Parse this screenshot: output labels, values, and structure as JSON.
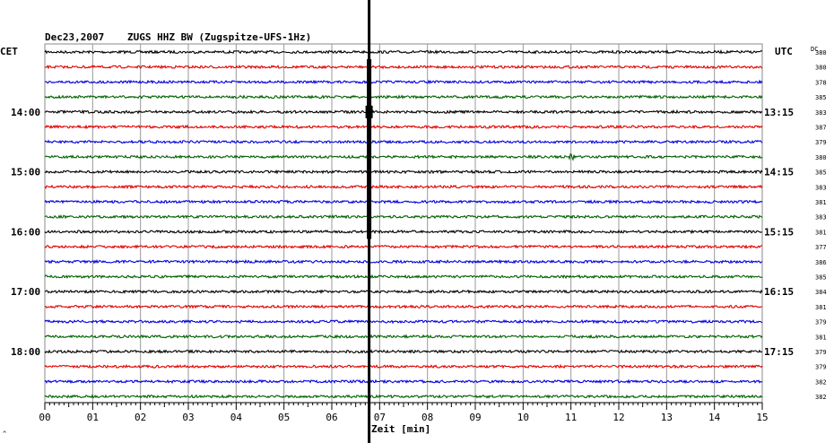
{
  "header": {
    "date": "Dec23,2007",
    "station": "ZUGS HHZ BW (Zugspitze-UFS-1Hz)",
    "left_tz": "CET",
    "right_tz": "UTC",
    "dc_header": "DC",
    "corner_mark": "^"
  },
  "chart_data": {
    "type": "line",
    "xlabel": "Zeit [min]",
    "xlim": [
      0,
      15
    ],
    "x_ticks": [
      "00",
      "01",
      "02",
      "03",
      "04",
      "05",
      "06",
      "07",
      "08",
      "09",
      "10",
      "11",
      "12",
      "13",
      "14",
      "15"
    ],
    "trace_colors": [
      "#000000",
      "#e00000",
      "#0000e0",
      "#006000"
    ],
    "hour_labels_left": [
      {
        "trace": 4,
        "text": "14:00"
      },
      {
        "trace": 8,
        "text": "15:00"
      },
      {
        "trace": 12,
        "text": "16:00"
      },
      {
        "trace": 16,
        "text": "17:00"
      },
      {
        "trace": 20,
        "text": "18:00"
      }
    ],
    "hour_labels_right": [
      {
        "trace": 4,
        "text": "13:15"
      },
      {
        "trace": 8,
        "text": "14:15"
      },
      {
        "trace": 12,
        "text": "15:15"
      },
      {
        "trace": 16,
        "text": "16:15"
      },
      {
        "trace": 20,
        "text": "17:15"
      }
    ],
    "dc_values": [
      "380",
      "380",
      "378",
      "385",
      "383",
      "387",
      "379",
      "380",
      "385",
      "383",
      "381",
      "383",
      "381",
      "377",
      "386",
      "385",
      "384",
      "381",
      "379",
      "381",
      "379",
      "379",
      "382",
      "382"
    ],
    "event": {
      "time_min": 6.78,
      "trace_start": 0,
      "trace_end": 12,
      "peak_trace": 4
    },
    "local_burst": {
      "trace": 7,
      "time_min": 11.0
    }
  }
}
